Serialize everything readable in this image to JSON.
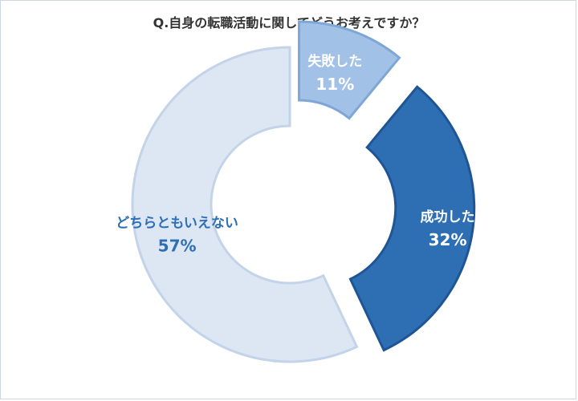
{
  "chart_data": {
    "type": "pie",
    "title": "Q.自身の転職活動に関してどうお考えですか？",
    "slices": [
      {
        "label": "失敗した",
        "value": 11,
        "value_label": "11%",
        "color": "#a1c1e6",
        "edge": "#7ea6d6",
        "text_color": "#ffffff"
      },
      {
        "label": "成功した",
        "value": 32,
        "value_label": "32%",
        "color": "#2e6fb4",
        "edge": "#1f5594",
        "text_color": "#ffffff"
      },
      {
        "label": "どちらともいえない",
        "value": 57,
        "value_label": "57%",
        "color": "#dde7f4",
        "edge": "#c3d3e8",
        "text_color": "#2e6fb4"
      }
    ],
    "donut": true,
    "start": "12 o'clock",
    "direction": "clockwise",
    "exploded": [
      "失敗した",
      "成功した"
    ]
  }
}
